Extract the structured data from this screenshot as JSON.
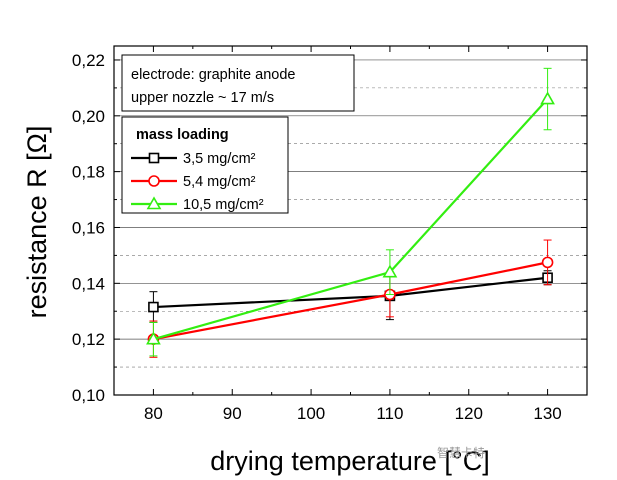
{
  "chart_data": {
    "type": "line",
    "xlabel": "drying temperature [°C]",
    "ylabel": "resistance R [Ω]",
    "xlim": [
      75,
      135
    ],
    "ylim": [
      0.1,
      0.225
    ],
    "x_ticks": [
      "80",
      "90",
      "100",
      "110",
      "120",
      "130"
    ],
    "y_ticks": [
      "0,10",
      "0,12",
      "0,14",
      "0,16",
      "0,18",
      "0,20",
      "0,22"
    ],
    "grid": "horizontal dashed",
    "annotation": {
      "line1": "electrode: graphite anode",
      "line2": "upper nozzle ~ 17 m/s"
    },
    "legend": {
      "title": "mass loading",
      "placement": "upper-left",
      "entries": [
        "3,5 mg/cm²",
        "5,4 mg/cm²",
        "10,5 mg/cm²"
      ]
    },
    "x": [
      80,
      110,
      130
    ],
    "series": [
      {
        "name": "3,5 mg/cm²",
        "color": "#000000",
        "marker": "square",
        "values": [
          0.1315,
          0.1355,
          0.142
        ],
        "errors": [
          0.0055,
          0.0085,
          0.0025
        ]
      },
      {
        "name": "5,4 mg/cm²",
        "color": "#ff0000",
        "marker": "circle",
        "values": [
          0.12,
          0.136,
          0.1475
        ],
        "errors": [
          0.0065,
          0.008,
          0.008
        ]
      },
      {
        "name": "10,5 mg/cm²",
        "color": "#33ee11",
        "marker": "triangle",
        "values": [
          0.12,
          0.144,
          0.206
        ],
        "errors": [
          0.006,
          0.008,
          0.011
        ]
      }
    ]
  },
  "watermark": "智慧卡特"
}
